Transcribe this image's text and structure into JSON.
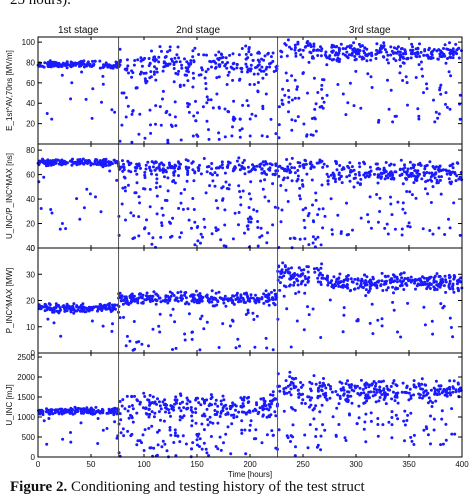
{
  "captions": {
    "top": "25 hours).",
    "bottom_prefix": "Figure 2.",
    "bottom_text": " Conditioning and testing history of the test struct"
  },
  "colors": {
    "points": "#1a1aff",
    "axis": "#000000",
    "grid": "#555555"
  },
  "chart_data": [
    {
      "type": "scatter",
      "ylabel": "E_1st^AV,70ns [MV/m]",
      "ylim": [
        0,
        105
      ],
      "yticks": [
        20,
        40,
        60,
        80,
        100
      ],
      "xlim": [
        0,
        400
      ],
      "stage_labels": [
        "1st stage",
        "2nd stage",
        "3rd stage"
      ],
      "stage_boundaries": [
        76,
        226
      ],
      "series": [
        {
          "segments": [
            {
              "x": [
                0,
                76
              ],
              "base": 78,
              "spread": 4,
              "drops": 0.12,
              "low": 20
            },
            {
              "x": [
                76,
                226
              ],
              "base": 80,
              "spread": 18,
              "drops": 0.45,
              "low": 0
            },
            {
              "x": [
                226,
                270
              ],
              "base": 92,
              "spread": 12,
              "drops": 0.5,
              "low": 5
            },
            {
              "x": [
                270,
                400
              ],
              "base": 90,
              "spread": 10,
              "drops": 0.25,
              "low": 20
            }
          ]
        }
      ]
    },
    {
      "type": "scatter",
      "ylabel": "U_INC/P_INC^MAX [ns]",
      "ylim": [
        0,
        85
      ],
      "yticks": [
        0,
        20,
        40,
        60,
        80
      ],
      "xlim": [
        0,
        400
      ],
      "series": [
        {
          "segments": [
            {
              "x": [
                0,
                76
              ],
              "base": 70,
              "spread": 3,
              "drops": 0.1,
              "low": 15
            },
            {
              "x": [
                76,
                226
              ],
              "base": 66,
              "spread": 8,
              "drops": 0.5,
              "low": 0
            },
            {
              "x": [
                226,
                270
              ],
              "base": 68,
              "spread": 8,
              "drops": 0.55,
              "low": 0
            },
            {
              "x": [
                270,
                400
              ],
              "base": 62,
              "spread": 10,
              "drops": 0.3,
              "low": 10
            }
          ]
        }
      ]
    },
    {
      "type": "scatter",
      "ylabel": "P_INC^MAX [MW]",
      "ylim": [
        0,
        40
      ],
      "yticks": [
        0,
        10,
        20,
        30,
        40
      ],
      "xlim": [
        0,
        400
      ],
      "series": [
        {
          "segments": [
            {
              "x": [
                0,
                76
              ],
              "base": 17,
              "spread": 2,
              "drops": 0.08,
              "low": 5
            },
            {
              "x": [
                76,
                226
              ],
              "base": 21,
              "spread": 3,
              "drops": 0.15,
              "low": 0
            },
            {
              "x": [
                226,
                270
              ],
              "base": 30,
              "spread": 5,
              "drops": 0.2,
              "low": 0
            },
            {
              "x": [
                270,
                400
              ],
              "base": 27,
              "spread": 4,
              "drops": 0.15,
              "low": 5
            }
          ]
        }
      ]
    },
    {
      "type": "scatter",
      "ylabel": "U_INC [mJ]",
      "ylim": [
        0,
        2600
      ],
      "yticks": [
        0,
        500,
        1000,
        1500,
        2000,
        2500
      ],
      "xticks": [
        0,
        50,
        100,
        150,
        200,
        250,
        300,
        350,
        400
      ],
      "xlabel": "Time [hours]",
      "xlim": [
        0,
        400
      ],
      "series": [
        {
          "segments": [
            {
              "x": [
                0,
                76
              ],
              "base": 1150,
              "spread": 100,
              "drops": 0.1,
              "low": 200
            },
            {
              "x": [
                76,
                226
              ],
              "base": 1300,
              "spread": 350,
              "drops": 0.4,
              "low": 0
            },
            {
              "x": [
                226,
                270
              ],
              "base": 1700,
              "spread": 500,
              "drops": 0.4,
              "low": 0
            },
            {
              "x": [
                270,
                400
              ],
              "base": 1650,
              "spread": 350,
              "drops": 0.25,
              "low": 300
            }
          ]
        }
      ]
    }
  ]
}
